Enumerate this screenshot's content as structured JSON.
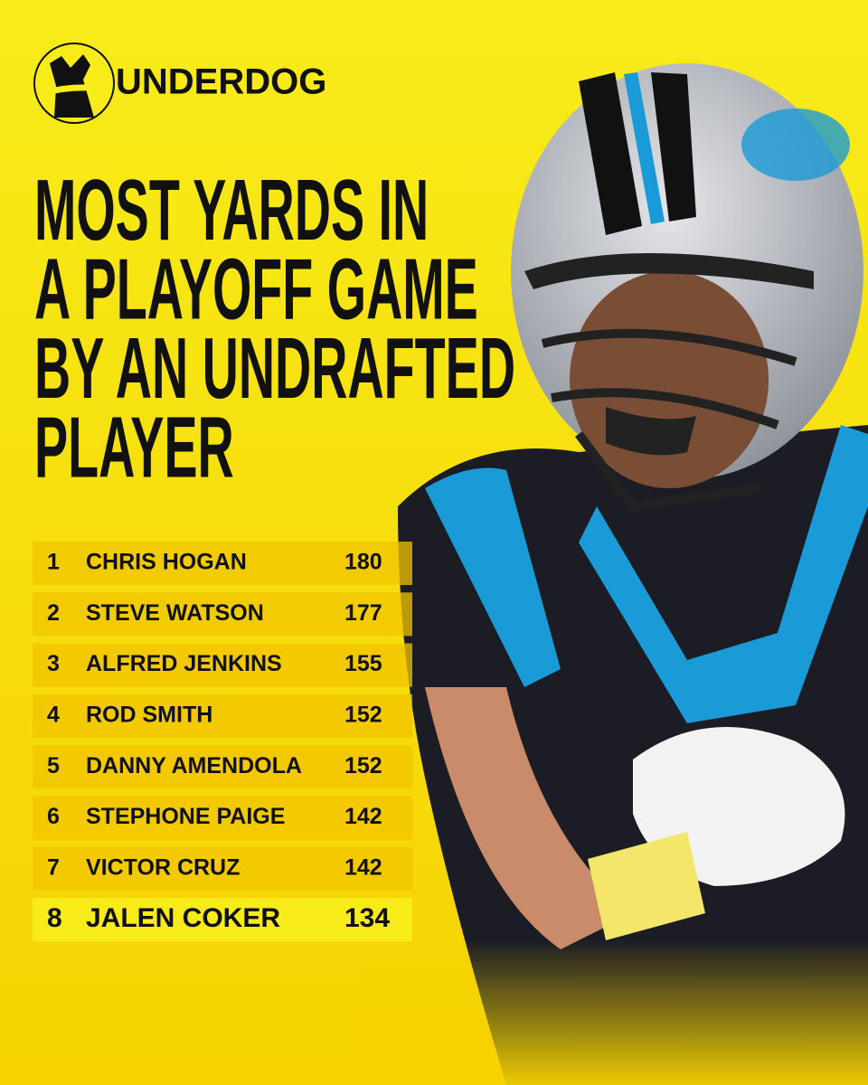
{
  "brand": "UNDERDOG",
  "title_lines": [
    "MOST YARDS IN",
    "A PLAYOFF GAME",
    "BY AN UNDRAFTED",
    "PLAYER"
  ],
  "table": {
    "rows": [
      [
        1,
        "CHRIS HOGAN",
        180
      ],
      [
        2,
        "STEVE WATSON",
        177
      ],
      [
        3,
        "ALFRED JENKINS",
        155
      ],
      [
        4,
        "ROD SMITH",
        152
      ],
      [
        5,
        "DANNY AMENDOLA",
        152
      ],
      [
        6,
        "STEPHONE PAIGE",
        142
      ],
      [
        7,
        "VICTOR CRUZ",
        142
      ],
      [
        8,
        "JALEN COKER",
        134
      ]
    ]
  }
}
